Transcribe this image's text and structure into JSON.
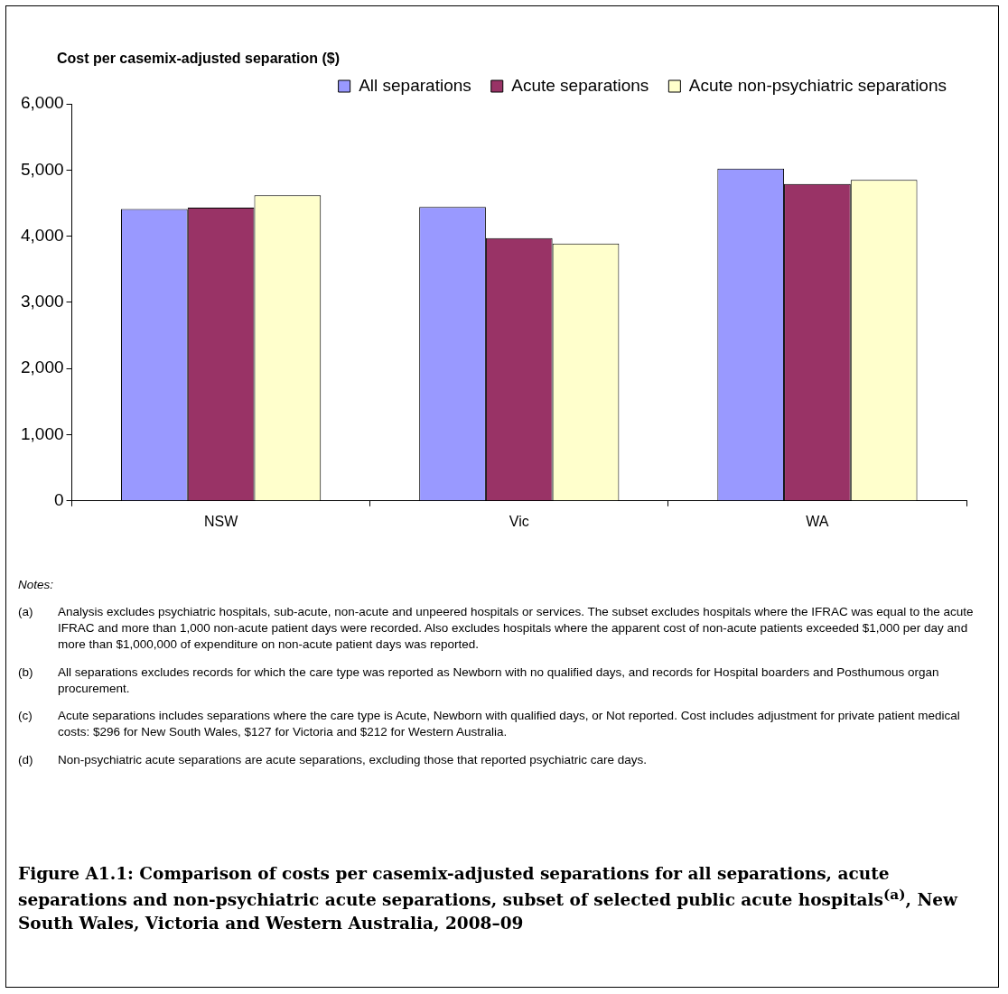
{
  "chart_data": {
    "type": "bar",
    "ylabel": "Cost per casemix-adjusted separation ($)",
    "title": "Figure A1.1: Comparison of costs per casemix-adjusted separations for all separations, acute separations and non-psychiatric acute separations, subset of selected public acute hospitals$^{(a)}$, New South Wales, Victoria and Western Australia, 2008–09",
    "categories": [
      "NSW",
      "Vic",
      "WA"
    ],
    "series": [
      {
        "name": "All separations",
        "color": "#9999ff",
        "values": [
          4410,
          4440,
          5020
        ]
      },
      {
        "name": "Acute separations",
        "color": "#993366",
        "values": [
          4430,
          3970,
          4790
        ]
      },
      {
        "name": "Acute non-psychiatric separations",
        "color": "#ffffcc",
        "values": [
          4620,
          3890,
          4850
        ]
      }
    ],
    "ylim": [
      0,
      6000
    ],
    "yticks": [
      {
        "value": 0,
        "label": "0"
      },
      {
        "value": 1000,
        "label": "1,000"
      },
      {
        "value": 2000,
        "label": "2,000"
      },
      {
        "value": 3000,
        "label": "3,000"
      },
      {
        "value": 4000,
        "label": "4,000"
      },
      {
        "value": 5000,
        "label": "5,000"
      },
      {
        "value": 6000,
        "label": "6,000"
      }
    ],
    "grid": false,
    "legend": "top",
    "annotations": [
      "Notes:",
      "(a) Analysis excludes psychiatric hospitals, sub-acute, non-acute and unpeered hospitals or services. The subset excludes hospitals where the IFRAC was equal to the acute IFRAC and more than 1,000 non-acute patient days were recorded. Also excludes hospitals where the apparent cost of non-acute patients exceeded $1,000 per day and more than $1,000,000 of expenditure on non-acute patient days was reported.",
      "(b) All separations excludes records for which the care type was reported as Newborn with no qualified days, and records for Hospital boarders and Posthumous organ procurement.",
      "(c) Acute separations includes separations where the care type is Acute, Newborn with qualified days, or Not reported. Cost includes adjustment for private patient medical costs: $296 for New South Wales, $127 for Victoria and $212 for Western Australia.",
      "(d) Non-psychiatric acute separations are acute separations, excluding those that reported psychiatric care days."
    ]
  }
}
